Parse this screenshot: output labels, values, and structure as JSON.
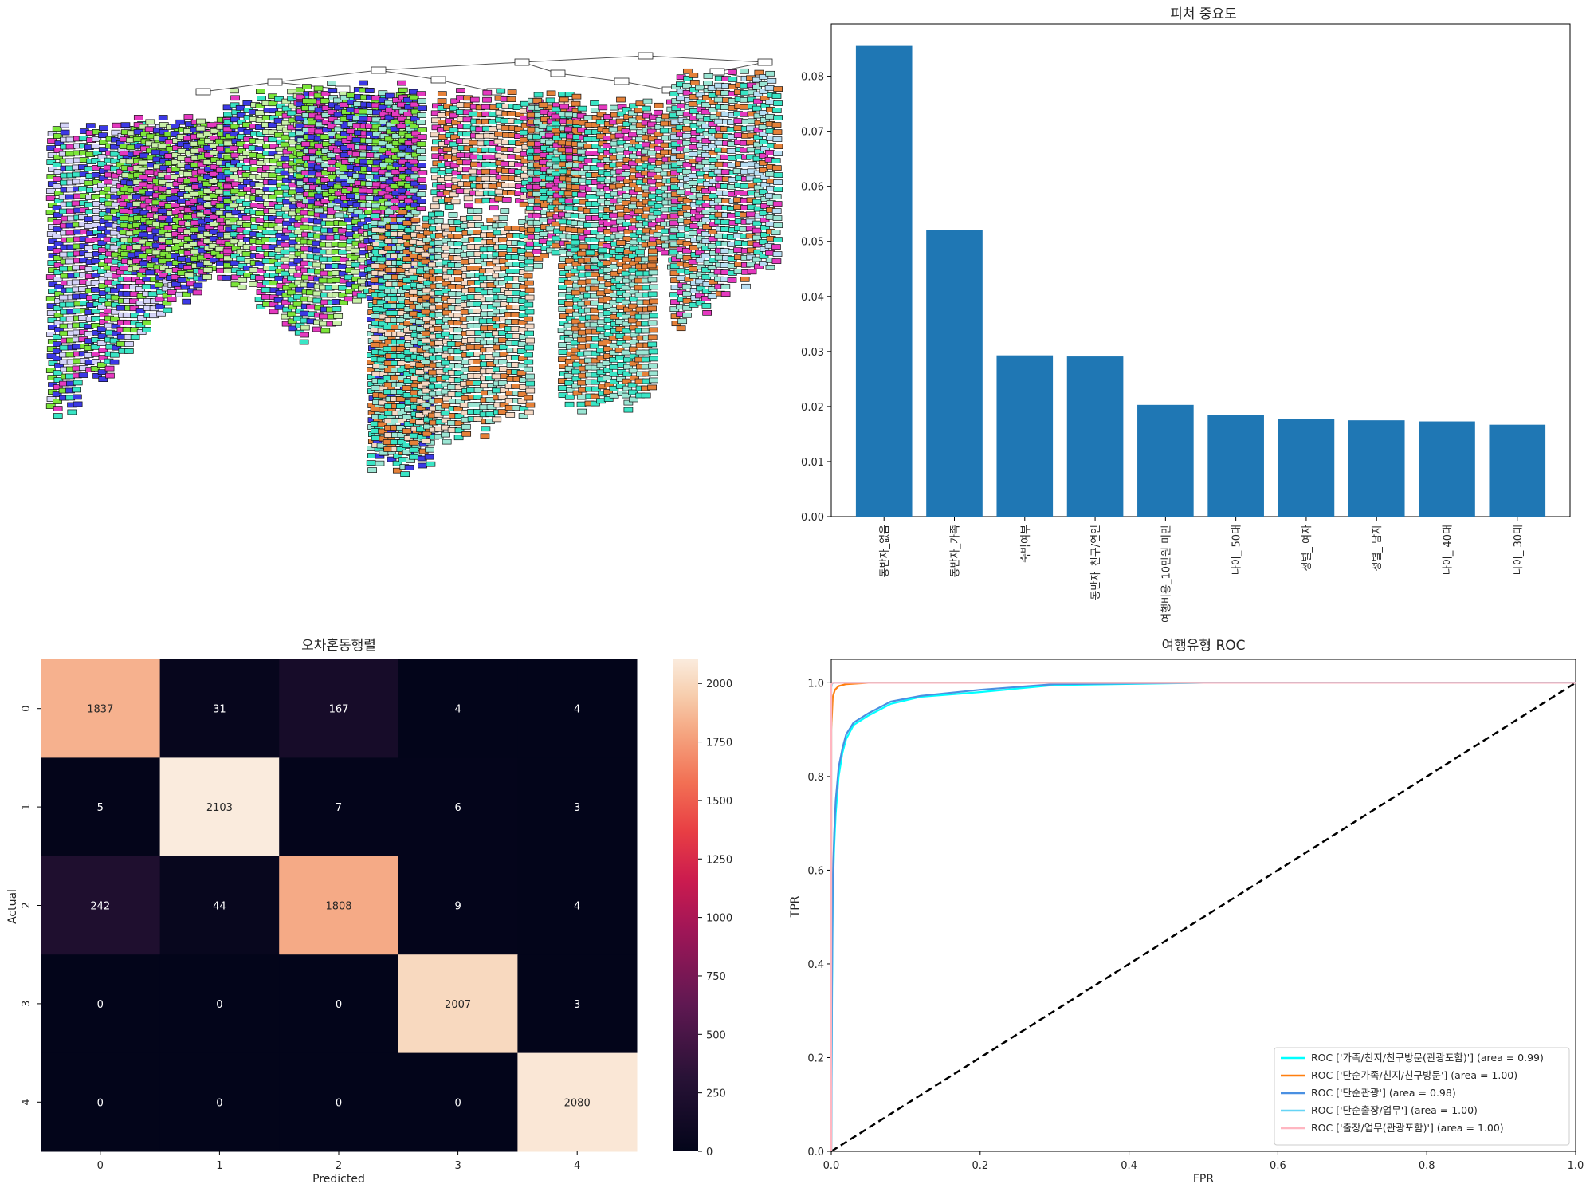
{
  "colors": {
    "bar": "#1f77b4",
    "heatmap_low": "#03051a",
    "heatmap_mid": "#cb1b4f",
    "heatmap_high": "#faebdd",
    "diagonal": "#000000",
    "tree_node_colors": [
      "#e58139",
      "#7be539",
      "#3c39e5",
      "#e539c0",
      "#39e5c5",
      "#9be6d4",
      "#b8dff4",
      "#f6d9c4",
      "#c8f0a8",
      "#d5d4f9",
      "#ffffff"
    ]
  },
  "chart_data": [
    {
      "type": "tree",
      "title": "",
      "description_free": true
    },
    {
      "type": "bar",
      "title": "피쳐 중요도",
      "xlabel": "",
      "ylabel": "",
      "categories": [
        "동반자_없음",
        "동반자_가족",
        "숙박여부",
        "동반자_친구/연인",
        "여행비용_10만원 미만",
        "나이_ 50대",
        "성별_ 여자",
        "성별_ 남자",
        "나이_ 40대",
        "나이_ 30대"
      ],
      "values": [
        0.0855,
        0.052,
        0.0293,
        0.0291,
        0.0203,
        0.0184,
        0.0178,
        0.0175,
        0.0173,
        0.0167
      ],
      "ylim": [
        0,
        0.0895
      ],
      "yticks": [
        "0.00",
        "0.01",
        "0.02",
        "0.03",
        "0.04",
        "0.05",
        "0.06",
        "0.07",
        "0.08"
      ]
    },
    {
      "type": "heatmap",
      "title": "오차혼동행렬",
      "xlabel": "Predicted",
      "ylabel": "Actual",
      "x_categories": [
        "0",
        "1",
        "2",
        "3",
        "4"
      ],
      "y_categories": [
        "0",
        "1",
        "2",
        "3",
        "4"
      ],
      "values": [
        [
          1837,
          31,
          167,
          4,
          4
        ],
        [
          5,
          2103,
          7,
          6,
          3
        ],
        [
          242,
          44,
          1808,
          9,
          4
        ],
        [
          0,
          0,
          0,
          2007,
          3
        ],
        [
          0,
          0,
          0,
          0,
          2080
        ]
      ],
      "colorbar_ticks": [
        "0",
        "250",
        "500",
        "750",
        "1000",
        "1250",
        "1500",
        "1750",
        "2000"
      ],
      "vmin": 0,
      "vmax": 2103
    },
    {
      "type": "line",
      "title": "여행유형 ROC",
      "xlabel": "FPR",
      "ylabel": "TPR",
      "xlim": [
        0,
        1.0
      ],
      "ylim": [
        0,
        1.05
      ],
      "xticks": [
        "0.0",
        "0.2",
        "0.4",
        "0.6",
        "0.8",
        "1.0"
      ],
      "yticks": [
        "0.0",
        "0.2",
        "0.4",
        "0.6",
        "0.8",
        "1.0"
      ],
      "legend_position": "lower-right",
      "series": [
        {
          "name": "ROC ['가족/친지/친구방문(관광포함)'] (area = 0.99)",
          "color": "#00ffff",
          "x": [
            0,
            0.001,
            0.002,
            0.004,
            0.006,
            0.01,
            0.015,
            0.02,
            0.03,
            0.05,
            0.08,
            0.12,
            0.2,
            0.3,
            0.5,
            1.0
          ],
          "y": [
            0,
            0.3,
            0.55,
            0.65,
            0.72,
            0.8,
            0.85,
            0.88,
            0.91,
            0.93,
            0.955,
            0.97,
            0.98,
            0.995,
            1.0,
            1.0
          ]
        },
        {
          "name": "ROC ['단순가족/친지/친구방문'] (area = 1.00)",
          "color": "#ff7f0e",
          "x": [
            0,
            0.0,
            0.002,
            0.005,
            0.01,
            0.02,
            0.05,
            1.0
          ],
          "y": [
            0,
            0.9,
            0.97,
            0.985,
            0.993,
            0.997,
            1.0,
            1.0
          ]
        },
        {
          "name": "ROC ['단순관광'] (area = 0.98)",
          "color": "#4a90e2",
          "x": [
            0,
            0.001,
            0.002,
            0.004,
            0.006,
            0.01,
            0.015,
            0.02,
            0.03,
            0.05,
            0.08,
            0.12,
            0.2,
            0.3,
            0.5,
            1.0
          ],
          "y": [
            0,
            0.35,
            0.58,
            0.68,
            0.75,
            0.82,
            0.86,
            0.89,
            0.915,
            0.935,
            0.96,
            0.972,
            0.985,
            0.997,
            1.0,
            1.0
          ]
        },
        {
          "name": "ROC ['단순출장/업무'] (area = 1.00)",
          "color": "#66d4f5",
          "x": [
            0,
            0.0,
            0.001,
            0.003,
            1.0
          ],
          "y": [
            0,
            0.99,
            0.998,
            1.0,
            1.0
          ]
        },
        {
          "name": "ROC ['출장/업무(관광포함)'] (area = 1.00)",
          "color": "#ffb6c1",
          "x": [
            0,
            0.0,
            0.001,
            0.002,
            1.0
          ],
          "y": [
            0,
            0.995,
            0.999,
            1.0,
            1.0
          ]
        }
      ],
      "diagonal": true
    }
  ]
}
